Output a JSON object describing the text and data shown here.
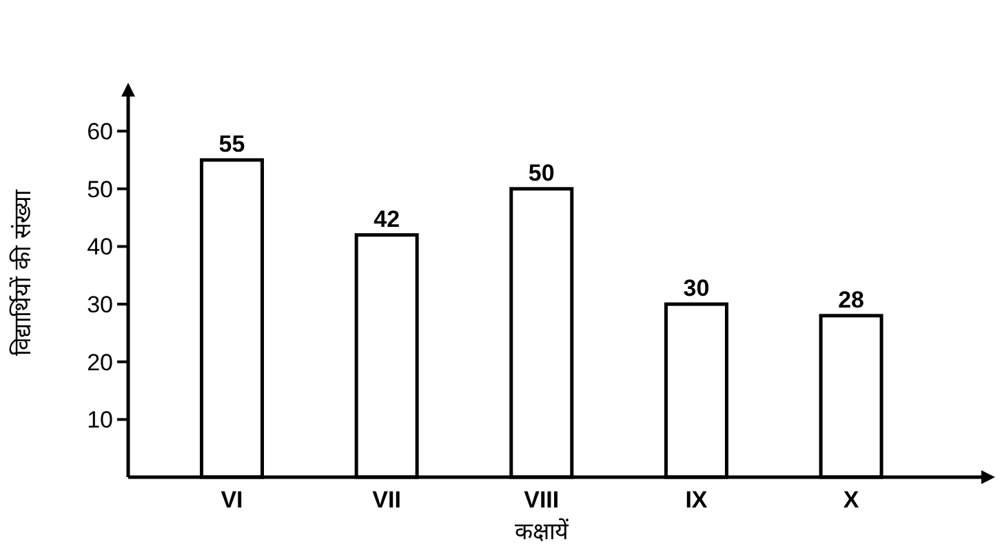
{
  "chart_data": {
    "type": "bar",
    "xlabel": "कक्षायें",
    "ylabel": "विद्यार्थियों की संख्या",
    "categories": [
      "VI",
      "VII",
      "VIII",
      "IX",
      "X"
    ],
    "values": [
      55,
      42,
      50,
      30,
      28
    ],
    "color": "#ffffff",
    "data_labels": true,
    "ylim": [
      0,
      66
    ],
    "yticks": [
      10,
      20,
      30,
      40,
      50,
      60
    ],
    "grid": false
  }
}
